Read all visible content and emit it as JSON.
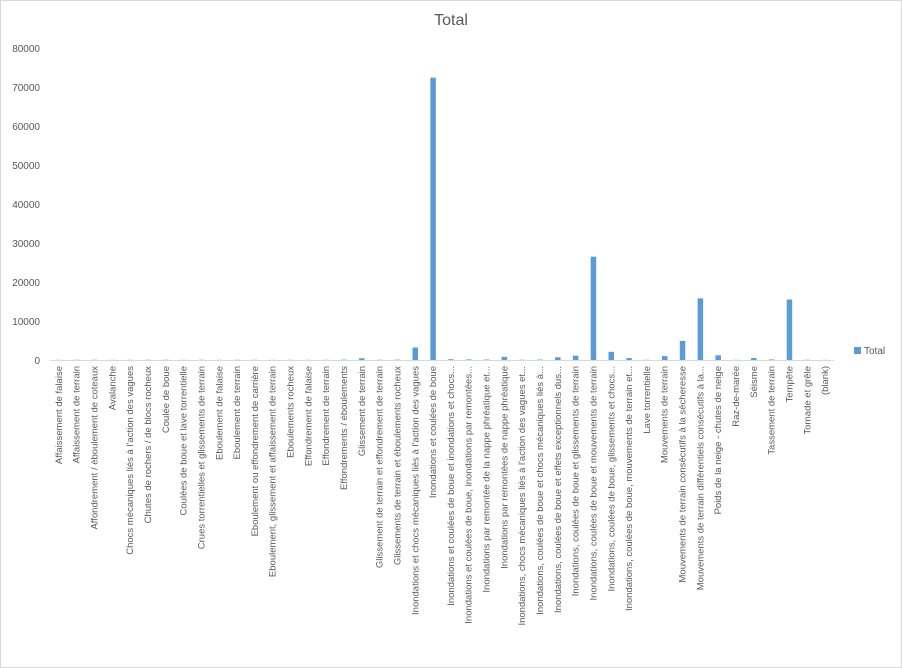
{
  "chart_data": {
    "type": "bar",
    "title": "Total",
    "xlabel": "",
    "ylabel": "",
    "ylim": [
      0,
      80000
    ],
    "yticks": [
      "0",
      "10000",
      "20000",
      "30000",
      "40000",
      "50000",
      "60000",
      "70000",
      "80000"
    ],
    "grid": false,
    "legend": "right",
    "color": "#5b9bd5",
    "categories": [
      "Affaissement de falaise",
      "Affaissement de terrain",
      "Affondrement / éboulement de coteaux",
      "Avalanche",
      "Chocs mécaniques liés à l'action des vagues",
      "Chutes de rochers / de blocs rocheux",
      "Coulée de boue",
      "Coulées de boue et lave torrentielle",
      "Crues torrentielles et glissements de terrain",
      "Eboulement de falaise",
      "Eboulement de terrain",
      "Eboulement ou effondrement de carrière",
      "Eboulement, glissement et affaissement de terrain",
      "Eboulements rocheux",
      "Effondrement de falaise",
      "Effondrement de terrain",
      "Effondrements / éboulements",
      "Glissement de terrain",
      "Glissement de terrain et effondrement de terrain",
      "Glissements de terrain et éboulements rocheux",
      "Inondations et chocs mécaniques liés à l'action des vagues",
      "Inondations et coulées de boue",
      "Inondations et coulées de boue et inondations et chocs...",
      "Inondations et coulées de boue, inondations par remontées...",
      "Inondations par remontée de la nappe phréatique et...",
      "Inondations par remontées de nappe phréatique",
      "Inondations, chocs mécaniques liés à l'action des vagues et...",
      "Inondations, coulées de boue et chocs mécaniques liés à...",
      "Inondations, coulées de boue et effets exceptionnels dus...",
      "Inondations, coulées de boue et glissements de terrain",
      "Inondations, coulées de boue et mouvements de terrain",
      "Inondations, coulées de boue, glissements et chocs...",
      "Inondations, coulées de boue, mouvements de terrain et...",
      "Lave torrentielle",
      "Mouvements de terrain",
      "Mouvements de terrain consécutifs à la sécheresse",
      "Mouvements de terrain différentiels consécutifs à la...",
      "Poids de la neige - chutes de neige",
      "Raz-de-marée",
      "Séisme",
      "Tassement de terrain",
      "Tempête",
      "Tornade et grêle",
      "(blank)"
    ],
    "series": [
      {
        "name": "Total",
        "values": [
          40,
          60,
          60,
          40,
          40,
          60,
          60,
          40,
          60,
          40,
          50,
          50,
          40,
          40,
          40,
          50,
          100,
          450,
          60,
          90,
          3200,
          72400,
          200,
          150,
          120,
          800,
          60,
          100,
          700,
          1100,
          26500,
          2100,
          500,
          50,
          1000,
          4900,
          15800,
          1200,
          40,
          500,
          150,
          15500,
          60,
          40
        ]
      }
    ]
  }
}
